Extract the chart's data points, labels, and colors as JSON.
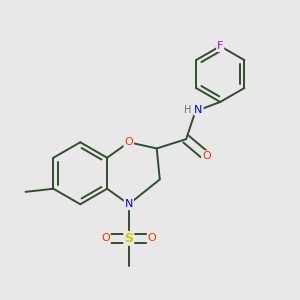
{
  "background_color": "#e8e8e8",
  "atom_colors": {
    "C": "#2f4f2f",
    "N": "#0000ff",
    "O": "#ff3300",
    "S": "#cccc00",
    "F": "#cc00cc",
    "H": "#4a7a7a"
  },
  "bond_color": "#2f4f2f",
  "bond_width": 1.4,
  "dbo": 0.018
}
